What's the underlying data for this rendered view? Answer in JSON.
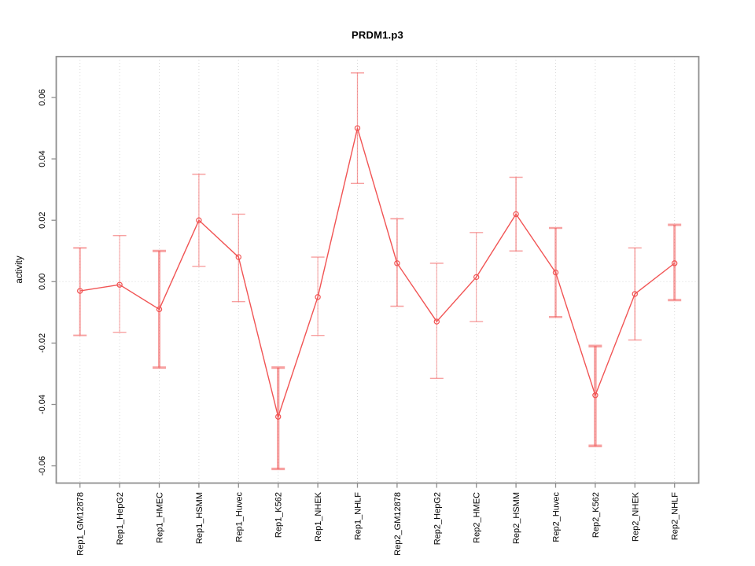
{
  "figure": {
    "title": "PRDM1.p3",
    "background": "#ffffff"
  },
  "chart_data": {
    "type": "line",
    "title": "PRDM1.p3",
    "xlabel": "",
    "ylabel": "activity",
    "categories": [
      "Rep1_GM12878",
      "Rep1_HepG2",
      "Rep1_HMEC",
      "Rep1_HSMM",
      "Rep1_Huvec",
      "Rep1_K562",
      "Rep1_NHEK",
      "Rep1_NHLF",
      "Rep2_GM12878",
      "Rep2_HepG2",
      "Rep2_HMEC",
      "Rep2_HSMM",
      "Rep2_Huvec",
      "Rep2_K562",
      "Rep2_NHEK",
      "Rep2_NHLF"
    ],
    "series": [
      {
        "name": "PRDM1.p3 activity",
        "color": "#f15454",
        "values": [
          -0.003,
          -0.001,
          -0.009,
          0.02,
          0.008,
          -0.044,
          -0.005,
          0.05,
          0.006,
          -0.013,
          0.0015,
          0.022,
          0.003,
          -0.037,
          -0.004,
          0.006
        ],
        "error_high": [
          0.011,
          0.015,
          0.01,
          0.035,
          0.022,
          -0.028,
          0.008,
          0.068,
          0.0205,
          0.006,
          0.016,
          0.034,
          0.0175,
          -0.021,
          0.011,
          0.0185
        ],
        "error_low": [
          -0.0175,
          -0.0165,
          -0.028,
          0.005,
          -0.0065,
          -0.061,
          -0.0175,
          0.032,
          -0.008,
          -0.0315,
          -0.013,
          0.01,
          -0.0115,
          -0.0535,
          -0.019,
          -0.006
        ]
      }
    ],
    "error_bar_color": "rgba(241,84,84,0.55)",
    "error_bar_lwd": [
      2,
      1,
      3,
      1.2,
      1.2,
      3.3,
      1,
      1.3,
      1.7,
      1,
      1,
      1.5,
      2.5,
      3.5,
      1.5,
      3
    ],
    "marker": "open-circle",
    "yticks": [
      -0.06,
      -0.04,
      -0.02,
      0,
      0.02,
      0.04,
      0.06
    ],
    "ytick_labels": [
      "-0.06",
      "-0.04",
      "-0.02",
      "0.00",
      "0.02",
      "0.04",
      "0.06"
    ],
    "ylim": [
      -0.066,
      0.0735
    ],
    "grid": {
      "vertical": "dotted line at each category",
      "horizontal": "dotted line at 0 only",
      "color": "#d8d8d8"
    },
    "axis_color": "#8e8e8e",
    "legend": null
  }
}
